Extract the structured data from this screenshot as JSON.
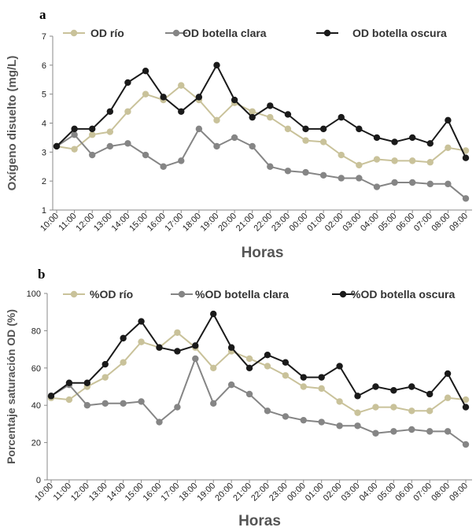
{
  "chart_data": [
    {
      "type": "line",
      "panel_label": "a",
      "xlabel": "Horas",
      "ylabel": "Oxígeno disuelto (mg/L)",
      "ylim": [
        1,
        7
      ],
      "yticks": [
        "1",
        "2",
        "3",
        "4",
        "5",
        "6",
        "7"
      ],
      "legend": "top",
      "categories": [
        "10:00",
        "11:00",
        "12:00",
        "13:00",
        "14:00",
        "15:00",
        "16:00",
        "17:00",
        "18:00",
        "19:00",
        "20:00",
        "21:00",
        "22:00",
        "23:00",
        "00:00",
        "01:00",
        "02:00",
        "03:00",
        "04:00",
        "05:00",
        "06:00",
        "07:00",
        "08:00",
        "09:00"
      ],
      "series": [
        {
          "name": "OD río",
          "color": "#c9c29a",
          "values": [
            3.2,
            3.1,
            3.6,
            3.7,
            4.4,
            5.0,
            4.8,
            5.3,
            4.8,
            4.1,
            4.7,
            4.4,
            4.2,
            3.8,
            3.4,
            3.35,
            2.9,
            2.55,
            2.75,
            2.7,
            2.7,
            2.65,
            3.15,
            3.05
          ]
        },
        {
          "name": "OD botella clara",
          "color": "#858585",
          "values": [
            3.2,
            3.6,
            2.9,
            3.2,
            3.3,
            2.9,
            2.5,
            2.7,
            3.8,
            3.2,
            3.5,
            3.2,
            2.5,
            2.35,
            2.3,
            2.2,
            2.1,
            2.1,
            1.8,
            1.95,
            1.95,
            1.9,
            1.9,
            1.4
          ]
        },
        {
          "name": "OD botella oscura",
          "color": "#1a1a1a",
          "values": [
            3.2,
            3.8,
            3.8,
            4.4,
            5.4,
            5.8,
            4.9,
            4.4,
            4.9,
            6.0,
            4.8,
            4.2,
            4.6,
            4.3,
            3.8,
            3.8,
            4.2,
            3.8,
            3.5,
            3.35,
            3.5,
            3.3,
            4.1,
            2.8
          ]
        }
      ]
    },
    {
      "type": "line",
      "panel_label": "b",
      "xlabel": "Horas",
      "ylabel": "Porcentaje saturación OD (%)",
      "ylim": [
        0,
        100
      ],
      "yticks": [
        "0",
        "20",
        "40",
        "60",
        "80",
        "100"
      ],
      "legend": "top",
      "categories": [
        "10:00",
        "11:00",
        "12:00",
        "13:00",
        "14:00",
        "15:00",
        "16:00",
        "17:00",
        "18:00",
        "19:00",
        "20:00",
        "21:00",
        "22:00",
        "23:00",
        "00:00",
        "01:00",
        "02:00",
        "03:00",
        "04:00",
        "05:00",
        "06:00",
        "07:00",
        "08:00",
        "09:00"
      ],
      "series": [
        {
          "name": "%OD río",
          "color": "#c9c29a",
          "values": [
            44,
            43,
            50,
            55,
            63,
            74,
            71,
            79,
            71,
            60,
            69,
            65,
            61,
            56,
            50,
            49,
            42,
            36,
            39,
            39,
            37,
            37,
            44,
            43
          ]
        },
        {
          "name": "%OD botella clara",
          "color": "#858585",
          "values": [
            45,
            51,
            40,
            41,
            41,
            42,
            31,
            39,
            65,
            41,
            51,
            46,
            37,
            34,
            32,
            31,
            29,
            29,
            25,
            26,
            27,
            26,
            26,
            19
          ]
        },
        {
          "name": "%OD botella oscura",
          "color": "#1a1a1a",
          "values": [
            45,
            52,
            52,
            62,
            76,
            85,
            71,
            69,
            72,
            89,
            71,
            60,
            67,
            63,
            55,
            55,
            61,
            45,
            50,
            48,
            50,
            46,
            57,
            39
          ]
        }
      ]
    }
  ]
}
